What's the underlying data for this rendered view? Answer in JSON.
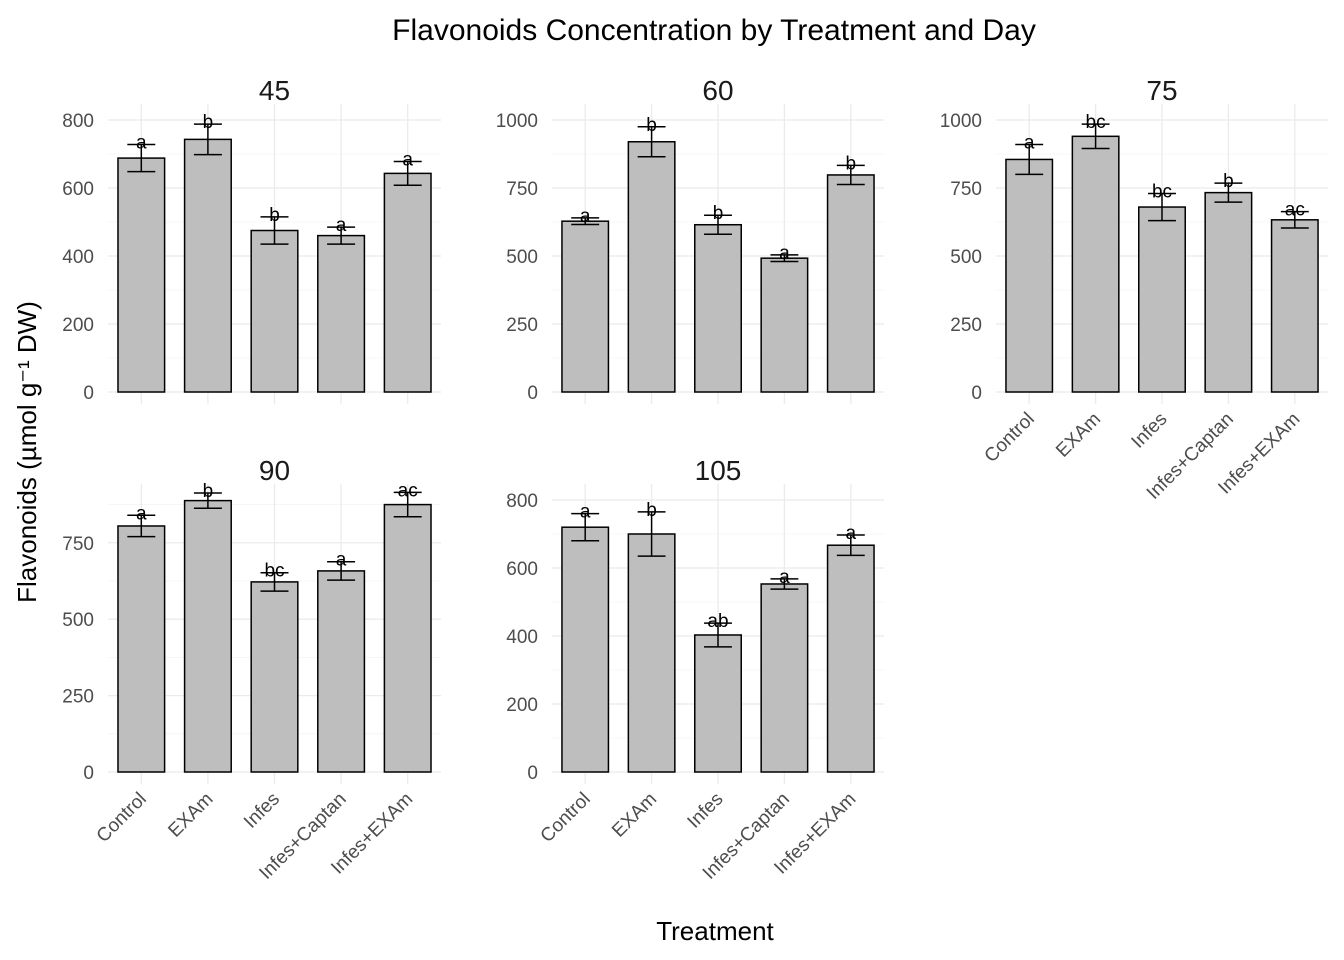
{
  "chart_data": {
    "type": "bar",
    "title": "Flavonoids Concentration by Treatment and Day",
    "xlabel": "Treatment",
    "ylabel": "Flavonoids (µmol g⁻¹ DW)",
    "categories": [
      "Control",
      "EXAm",
      "Infes",
      "Infes+Captan",
      "Infes+EXAm"
    ],
    "bar_color": "#bebebe",
    "grid": true,
    "legend": "none",
    "facets": [
      {
        "title": "45",
        "ylim": [
          0,
          800
        ],
        "yticks": [
          0,
          200,
          400,
          600,
          800
        ],
        "values": [
          688,
          743,
          475,
          460,
          643
        ],
        "errors": [
          40,
          45,
          40,
          25,
          35
        ],
        "letters": [
          "a",
          "b",
          "b",
          "a",
          "a"
        ]
      },
      {
        "title": "60",
        "ylim": [
          0,
          1000
        ],
        "yticks": [
          0,
          250,
          500,
          750,
          1000
        ],
        "values": [
          628,
          920,
          615,
          492,
          798
        ],
        "errors": [
          12,
          55,
          35,
          12,
          35
        ],
        "letters": [
          "a",
          "b",
          "b",
          "a",
          "b"
        ]
      },
      {
        "title": "75",
        "ylim": [
          0,
          1000
        ],
        "yticks": [
          0,
          250,
          500,
          750,
          1000
        ],
        "values": [
          855,
          940,
          680,
          733,
          633
        ],
        "errors": [
          55,
          45,
          50,
          35,
          30
        ],
        "letters": [
          "a",
          "bc",
          "bc",
          "b",
          "ac"
        ]
      },
      {
        "title": "90",
        "ylim": [
          0,
          890
        ],
        "yticks": [
          0,
          250,
          500,
          750
        ],
        "values": [
          805,
          888,
          622,
          658,
          875
        ],
        "errors": [
          35,
          25,
          30,
          30,
          40
        ],
        "letters": [
          "a",
          "b",
          "bc",
          "a",
          "ac"
        ]
      },
      {
        "title": "105",
        "ylim": [
          0,
          800
        ],
        "yticks": [
          0,
          200,
          400,
          600,
          800
        ],
        "values": [
          720,
          700,
          403,
          553,
          667
        ],
        "errors": [
          40,
          65,
          35,
          15,
          30
        ],
        "letters": [
          "a",
          "b",
          "ab",
          "a",
          "a"
        ]
      }
    ]
  }
}
